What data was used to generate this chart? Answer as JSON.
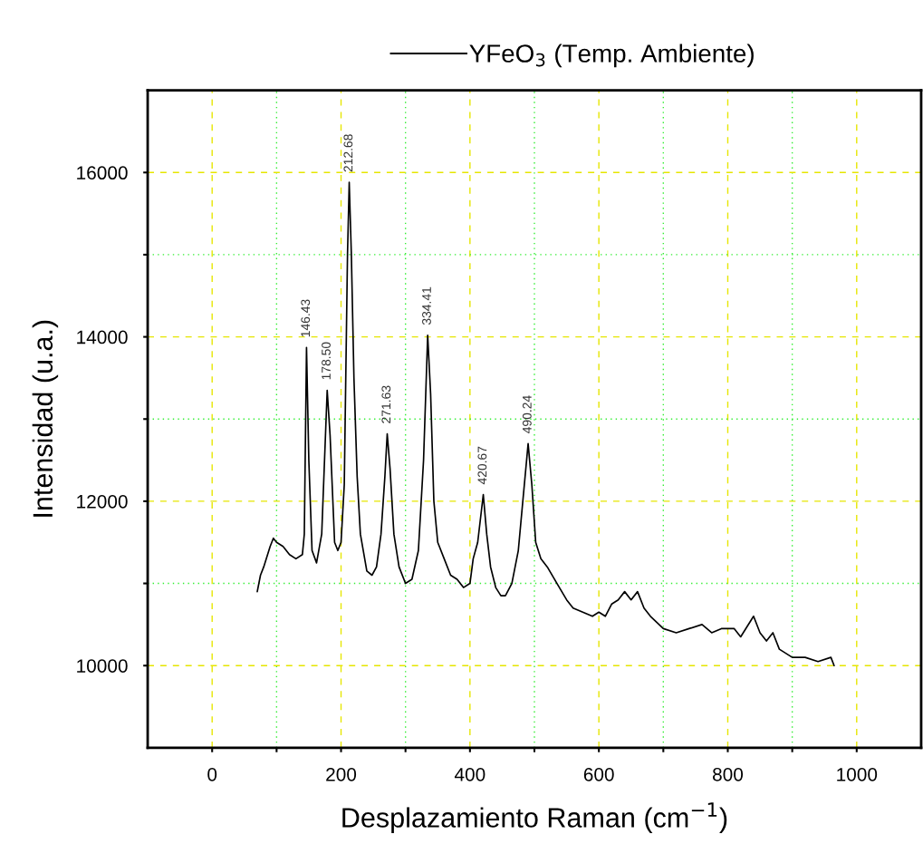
{
  "chart_data": {
    "type": "line",
    "xlabel": "Desplazamiento Raman (cm$^{−1}$)",
    "ylabel": "Intensidad (u.a.)",
    "xlim": [
      -100,
      1100
    ],
    "ylim": [
      9000,
      17000
    ],
    "xticks": [
      0,
      {
        "value": 100,
        "label": null
      },
      200,
      {
        "value": 300,
        "label": null
      },
      400,
      {
        "value": 500,
        "label": null
      },
      600,
      {
        "value": 700,
        "label": null
      },
      800,
      {
        "value": 900,
        "label": null
      },
      1000
    ],
    "yticks": [
      10000,
      {
        "value": 11000,
        "label": null
      },
      12000,
      {
        "value": 13000,
        "label": null
      },
      14000,
      {
        "value": 15000,
        "label": null
      },
      16000
    ],
    "grid": true,
    "legend": "top",
    "marker": "none",
    "line_style": "solid",
    "series": [
      {
        "name": "YFeO$_{3}$ (Temp. Ambiente)",
        "color": "#000000",
        "x": [
          70,
          75,
          80,
          90,
          95,
          100,
          110,
          120,
          130,
          140,
          143,
          146.43,
          150,
          155,
          162,
          170,
          178.5,
          183,
          190,
          195,
          200,
          205,
          210,
          212.68,
          216,
          220,
          225,
          230,
          240,
          248,
          255,
          262,
          268,
          271.63,
          276,
          282,
          290,
          300,
          310,
          320,
          328,
          334.41,
          339,
          344,
          350,
          360,
          370,
          380,
          390,
          400,
          405,
          412,
          420.67,
          426,
          432,
          440,
          448,
          455,
          465,
          475,
          482,
          490.24,
          496,
          502,
          510,
          520,
          535,
          550,
          560,
          575,
          590,
          600,
          610,
          620,
          630,
          640,
          650,
          660,
          670,
          680,
          700,
          720,
          740,
          760,
          775,
          790,
          810,
          820,
          840,
          850,
          860,
          870,
          880,
          890,
          900,
          920,
          940,
          960,
          965
        ],
        "values": [
          10900,
          11100,
          11200,
          11450,
          11550,
          11500,
          11450,
          11350,
          11300,
          11350,
          11600,
          13870,
          12500,
          11400,
          11250,
          11600,
          13350,
          12800,
          11500,
          11400,
          11500,
          12200,
          15000,
          15880,
          15000,
          13500,
          12300,
          11600,
          11150,
          11100,
          11200,
          11600,
          12300,
          12820,
          12400,
          11600,
          11200,
          11000,
          11050,
          11400,
          12500,
          14020,
          13300,
          12000,
          11500,
          11300,
          11100,
          11050,
          10950,
          11000,
          11300,
          11500,
          12080,
          11600,
          11200,
          10950,
          10850,
          10850,
          11000,
          11400,
          12000,
          12700,
          12200,
          11500,
          11300,
          11200,
          11000,
          10800,
          10700,
          10650,
          10600,
          10650,
          10600,
          10750,
          10800,
          10900,
          10800,
          10900,
          10700,
          10600,
          10450,
          10400,
          10450,
          10500,
          10400,
          10450,
          10450,
          10350,
          10600,
          10400,
          10300,
          10400,
          10200,
          10150,
          10100,
          10100,
          10050,
          10100,
          10000
        ]
      }
    ],
    "annotations": [
      {
        "text": "146.43",
        "x": 146.43,
        "y": 13870
      },
      {
        "text": "178.50",
        "x": 178.5,
        "y": 13350
      },
      {
        "text": "212.68",
        "x": 212.68,
        "y": 15880
      },
      {
        "text": "271.63",
        "x": 271.63,
        "y": 12820
      },
      {
        "text": "334.41",
        "x": 334.41,
        "y": 14020
      },
      {
        "text": "420.67",
        "x": 420.67,
        "y": 12080
      },
      {
        "text": "490.24",
        "x": 490.24,
        "y": 12700
      }
    ]
  }
}
